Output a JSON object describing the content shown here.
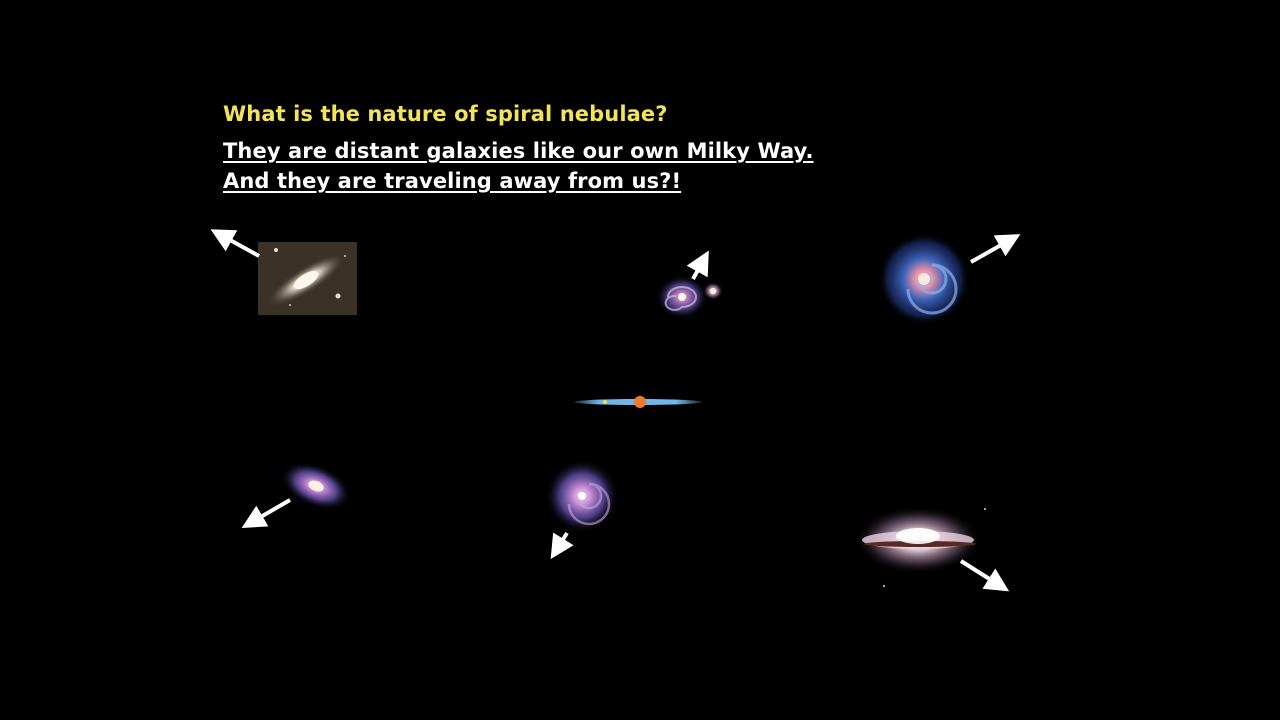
{
  "slide": {
    "question": "What is the nature of spiral nebulae?",
    "answer_line_1": "They are distant galaxies like our own Milky Way.",
    "answer_line_2": "And they are traveling away from us?!"
  },
  "colors": {
    "question": "#f3e35a",
    "answer": "#ffffff",
    "background": "#000000",
    "milky_way_disk": "#6fb6ea",
    "sun_marker": "#f07a2a",
    "arrow": "#ffffff"
  },
  "galaxies": [
    {
      "name": "andromeda-galaxy-photo",
      "arrow_direction": "up-left"
    },
    {
      "name": "whirlpool-galaxy",
      "arrow_direction": "up"
    },
    {
      "name": "blue-spiral-galaxy",
      "arrow_direction": "up-right"
    },
    {
      "name": "tilted-spiral-galaxy",
      "arrow_direction": "down-left"
    },
    {
      "name": "face-on-spiral-galaxy",
      "arrow_direction": "down-left"
    },
    {
      "name": "sombrero-galaxy",
      "arrow_direction": "down-right"
    }
  ]
}
